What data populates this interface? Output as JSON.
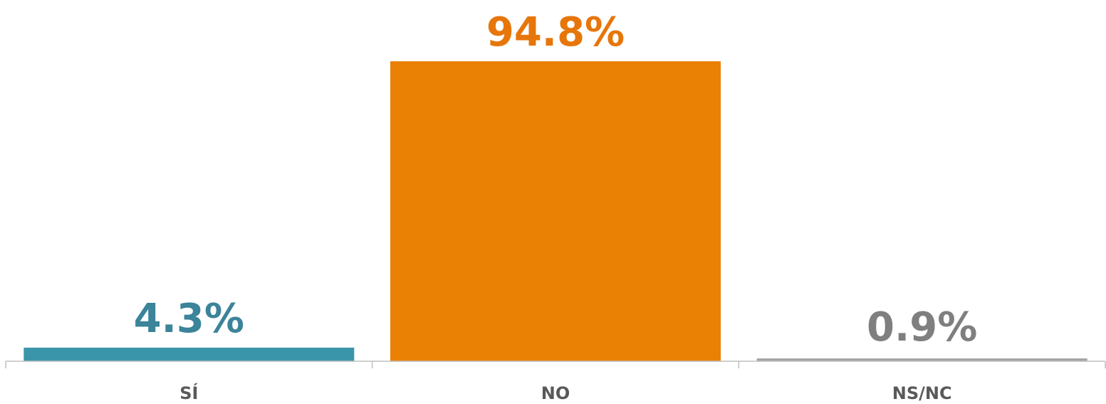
{
  "chart_data": {
    "type": "bar",
    "title": "",
    "xlabel": "",
    "ylabel": "",
    "categories": [
      "SÍ",
      "NO",
      "NS/NC"
    ],
    "values": [
      4.3,
      94.8,
      0.9
    ],
    "value_labels": [
      "4.3%",
      "94.8%",
      "0.9%"
    ],
    "colors": [
      "#3b95aa",
      "#ea8004",
      "#a5a5a5"
    ],
    "label_colors": [
      "#3b8499",
      "#e7760a",
      "#7f7f7f"
    ],
    "ylim": [
      0,
      94.8
    ],
    "grid": false,
    "legend": "none"
  }
}
